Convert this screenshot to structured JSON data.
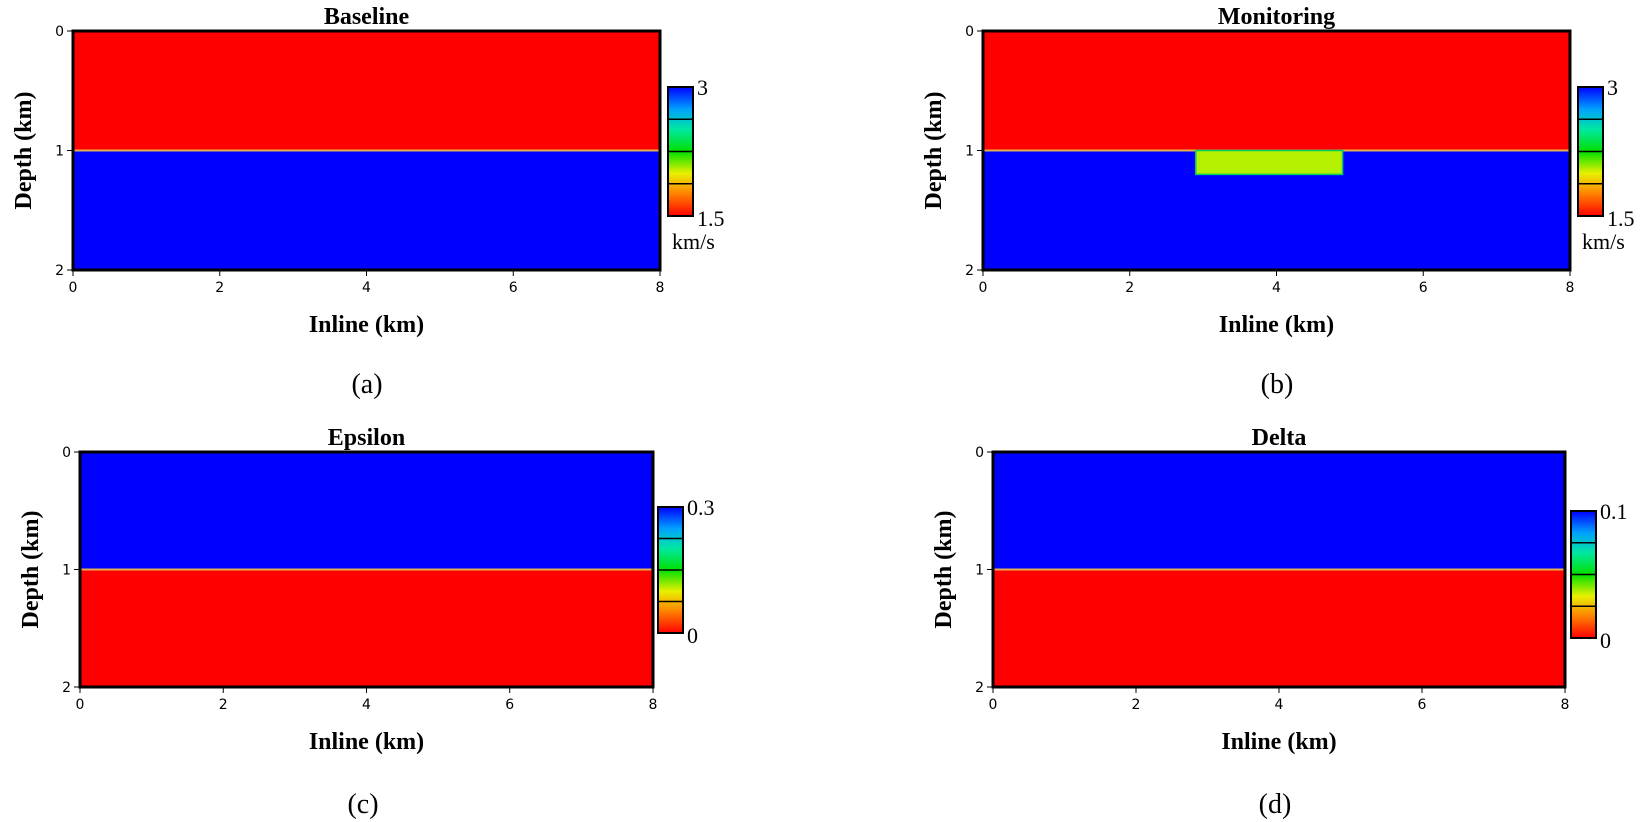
{
  "colors": {
    "red": "#ff0000",
    "blue": "#0000ff",
    "interface": "#e0b050",
    "anomaly": "#b4f000",
    "anomaly_edge": "#00d060",
    "colormap_low": "#ff0000",
    "colormap_high": "#0000ff"
  },
  "chart_data": [
    {
      "type": "heatmap",
      "title": "Baseline",
      "xlabel": "Inline (km)",
      "ylabel": "Depth (km)",
      "xlim": [
        0,
        8
      ],
      "ylim": [
        0,
        2
      ],
      "xticks": [
        "0",
        "2",
        "4",
        "6",
        "8"
      ],
      "yticks": [
        "0",
        "1",
        "2"
      ],
      "layers": [
        {
          "depth_from": 0,
          "depth_to": 1,
          "value": 1.5
        },
        {
          "depth_from": 1,
          "depth_to": 2,
          "value": 3
        }
      ],
      "anomaly": null,
      "colorbar": {
        "min": 1.5,
        "max": 3,
        "min_label": "1.5",
        "max_label": "3",
        "unit": "km/s"
      },
      "caption": "(a)"
    },
    {
      "type": "heatmap",
      "title": "Monitoring",
      "xlabel": "Inline (km)",
      "ylabel": "Depth (km)",
      "xlim": [
        0,
        8
      ],
      "ylim": [
        0,
        2
      ],
      "xticks": [
        "0",
        "2",
        "4",
        "6",
        "8"
      ],
      "yticks": [
        "0",
        "1",
        "2"
      ],
      "layers": [
        {
          "depth_from": 0,
          "depth_to": 1,
          "value": 1.5
        },
        {
          "depth_from": 1,
          "depth_to": 2,
          "value": 3
        }
      ],
      "anomaly": {
        "x_from": 2.9,
        "x_to": 4.9,
        "depth_from": 1.0,
        "depth_to": 1.2,
        "value": 2.1
      },
      "colorbar": {
        "min": 1.5,
        "max": 3,
        "min_label": "1.5",
        "max_label": "3",
        "unit": "km/s"
      },
      "caption": "(b)"
    },
    {
      "type": "heatmap",
      "title": "Epsilon",
      "xlabel": "Inline (km)",
      "ylabel": "Depth (km)",
      "xlim": [
        0,
        8
      ],
      "ylim": [
        0,
        2
      ],
      "xticks": [
        "0",
        "2",
        "4",
        "6",
        "8"
      ],
      "yticks": [
        "0",
        "1",
        "2"
      ],
      "layers": [
        {
          "depth_from": 0,
          "depth_to": 1,
          "value": 0.3
        },
        {
          "depth_from": 1,
          "depth_to": 2,
          "value": 0
        }
      ],
      "anomaly": null,
      "colorbar": {
        "min": 0,
        "max": 0.3,
        "min_label": "0",
        "max_label": "0.3",
        "unit": ""
      },
      "caption": "(c)"
    },
    {
      "type": "heatmap",
      "title": "Delta",
      "xlabel": "Inline (km)",
      "ylabel": "Depth (km)",
      "xlim": [
        0,
        8
      ],
      "ylim": [
        0,
        2
      ],
      "xticks": [
        "0",
        "2",
        "4",
        "6",
        "8"
      ],
      "yticks": [
        "0",
        "1",
        "2"
      ],
      "layers": [
        {
          "depth_from": 0,
          "depth_to": 1,
          "value": 0.1
        },
        {
          "depth_from": 1,
          "depth_to": 2,
          "value": 0
        }
      ],
      "anomaly": null,
      "colorbar": {
        "min": 0,
        "max": 0.1,
        "min_label": "0",
        "max_label": "0.1",
        "unit": ""
      },
      "caption": "(d)"
    }
  ]
}
